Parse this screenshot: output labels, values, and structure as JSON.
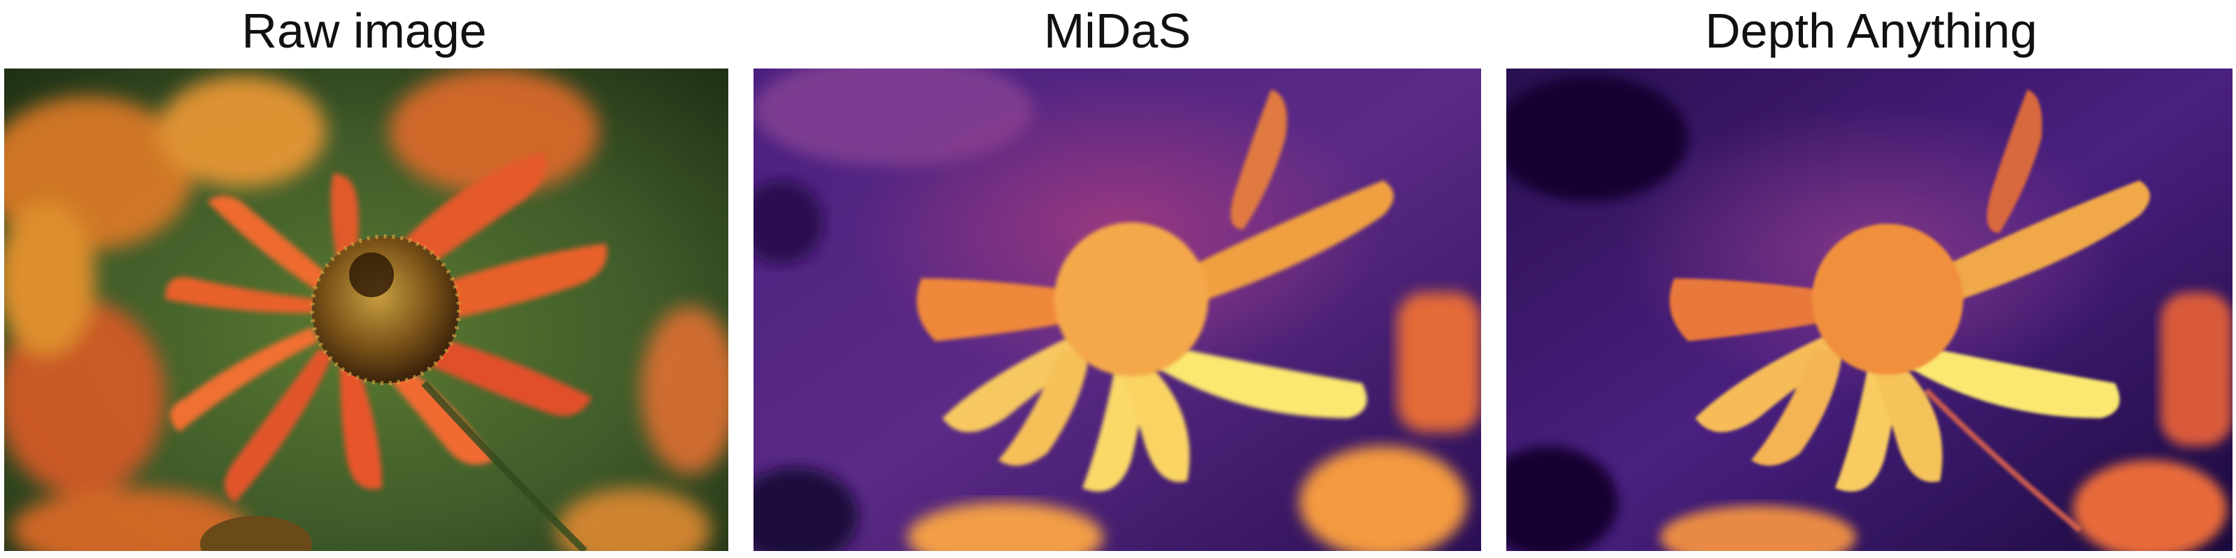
{
  "panels": [
    {
      "title": "Raw image",
      "content": "photo of orange-red helenium flowers with a brown textured center on a green blurred background"
    },
    {
      "title": "MiDaS",
      "content": "depth map in inferno colormap: bright yellow foreground petals, orange flower head, purple background"
    },
    {
      "title": "Depth Anything",
      "content": "depth map in inferno colormap with sharper details: bright yellow petals, orange flower head, dark purple background"
    }
  ],
  "colors": {
    "inferno_dark": "#1a0a3d",
    "inferno_purple": "#5b2a86",
    "inferno_magenta": "#9a3a8a",
    "inferno_orange": "#f08a3a",
    "inferno_yellow": "#fbe870",
    "petal_red": "#e0502a",
    "petal_orange": "#f39a2a",
    "flower_center": "#5a3a10",
    "foliage_green": "#3e5a2a"
  }
}
